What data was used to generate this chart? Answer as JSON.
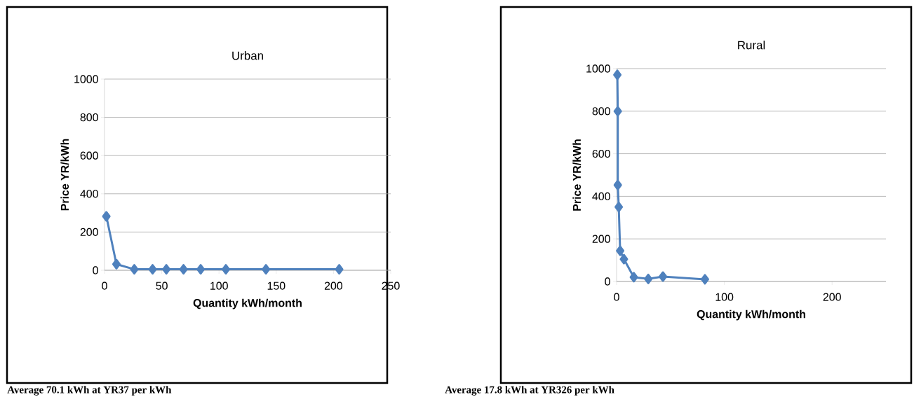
{
  "chart_data": [
    {
      "type": "line",
      "title": "Urban",
      "xlabel": "Quantity kWh/month",
      "ylabel": "Price YR/kWh",
      "annotations": [
        "Average 70.1 kWh at YR37 per kWh"
      ],
      "xlim": [
        0,
        250
      ],
      "ylim": [
        0,
        1000
      ],
      "xticks": [
        0,
        50,
        100,
        150,
        200,
        250
      ],
      "yticks": [
        0,
        200,
        400,
        600,
        800,
        1000
      ],
      "grid": "y",
      "marker": "diamond",
      "line_style": "solid",
      "series": [
        {
          "color": "#4f81bd",
          "x": [
            1.6,
            10.4,
            26,
            42,
            54,
            69,
            84,
            106,
            141,
            205
          ],
          "values": [
            282,
            32,
            5,
            5,
            5,
            5,
            5,
            5,
            5,
            5
          ]
        }
      ]
    },
    {
      "type": "line",
      "title": "Rural",
      "xlabel": "Quantity kWh/month",
      "ylabel": "Price YR/kWh",
      "annotations": [
        "Average 17.8 kWh at YR326 per kWh"
      ],
      "xlim": [
        0,
        250
      ],
      "ylim": [
        0,
        1000
      ],
      "xticks": [
        0,
        100,
        200
      ],
      "yticks": [
        0,
        200,
        400,
        600,
        800,
        1000
      ],
      "grid": "y",
      "marker": "diamond",
      "line_style": "solid",
      "series": [
        {
          "color": "#4f81bd",
          "x": [
            0.7,
            1.1,
            1.1,
            2,
            3.3,
            6.8,
            16,
            29.4,
            43,
            82
          ],
          "values": [
            971,
            800,
            453,
            350,
            144,
            105,
            20,
            12,
            23,
            10
          ]
        }
      ]
    }
  ]
}
